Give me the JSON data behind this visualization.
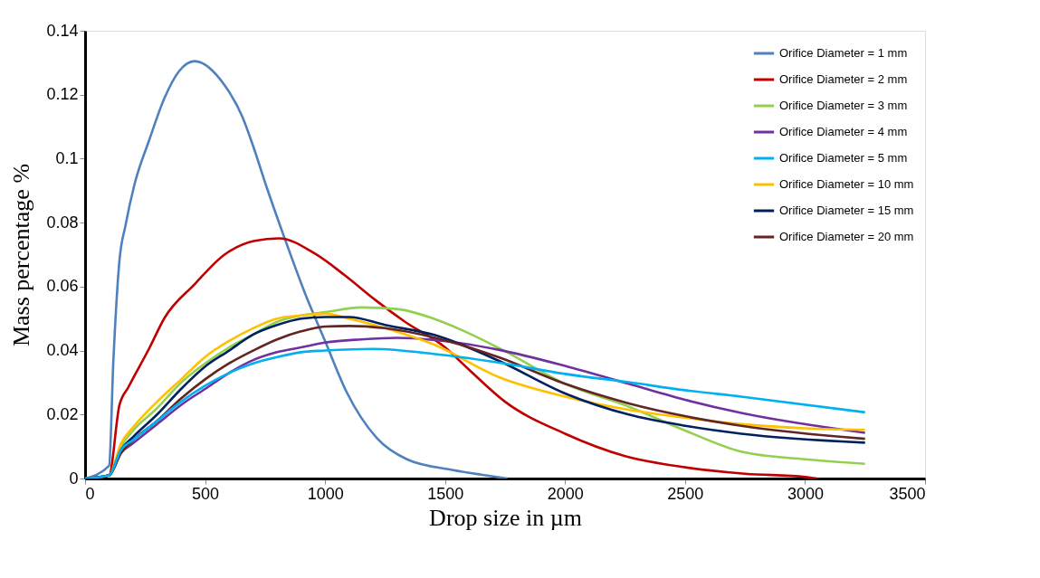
{
  "chart_data": {
    "type": "line",
    "xlabel": "Drop size in µm",
    "ylabel": "Mass percentage %",
    "xlim": [
      0,
      3500
    ],
    "ylim": [
      0,
      0.14
    ],
    "xticks": [
      0,
      500,
      1000,
      1500,
      2000,
      2500,
      3000,
      3500
    ],
    "yticks": [
      0,
      0.02,
      0.04,
      0.06,
      0.08,
      0.1,
      0.12,
      0.14
    ],
    "grid": false,
    "legend": "top right",
    "marker": "none",
    "line_style": "solid",
    "series": [
      {
        "name": "Orifice Diameter = 1 mm",
        "color": "#4f81bd",
        "x": [
          0,
          100,
          118,
          143,
          168,
          206,
          268,
          331,
          393,
          456,
          581,
          656,
          700,
          757,
          832,
          916,
          1000,
          1090,
          1216,
          1341,
          1529,
          1650,
          1760
        ],
        "values": [
          0,
          0.004,
          0.037,
          0.068,
          0.079,
          0.092,
          0.106,
          0.119,
          0.1275,
          0.1305,
          0.123,
          0.113,
          0.104,
          0.091,
          0.075,
          0.058,
          0.043,
          0.027,
          0.0126,
          0.006,
          0.0027,
          0.0012,
          0
        ]
      },
      {
        "name": "Orifice Diameter = 2 mm",
        "color": "#c00000",
        "x": [
          0,
          100,
          143,
          180,
          268,
          331,
          456,
          581,
          707,
          808,
          958,
          1083,
          1208,
          1333,
          1500,
          1600,
          1750,
          2000,
          2250,
          2500,
          2750,
          3000,
          3050
        ],
        "values": [
          0,
          0.001,
          0.0229,
          0.0285,
          0.0408,
          0.0502,
          0.0607,
          0.07,
          0.0743,
          0.0751,
          0.0703,
          0.0635,
          0.0559,
          0.049,
          0.041,
          0.034,
          0.024,
          0.014,
          0.007,
          0.0035,
          0.0015,
          0.0005,
          0
        ]
      },
      {
        "name": "Orifice Diameter = 3 mm",
        "color": "#92d050",
        "x": [
          0,
          100,
          150,
          200,
          300,
          400,
          500,
          600,
          700,
          800,
          900,
          1000,
          1150,
          1300,
          1459,
          1727,
          2000,
          2265,
          2500,
          2734,
          3000,
          3250
        ],
        "values": [
          0,
          0.001,
          0.01,
          0.015,
          0.022,
          0.03,
          0.036,
          0.041,
          0.045,
          0.049,
          0.051,
          0.052,
          0.0535,
          0.053,
          0.0498,
          0.0407,
          0.0296,
          0.0225,
          0.015,
          0.0084,
          0.006,
          0.0046
        ]
      },
      {
        "name": "Orifice Diameter = 4 mm",
        "color": "#7030a0",
        "x": [
          0,
          100,
          150,
          200,
          300,
          400,
          500,
          600,
          700,
          800,
          900,
          1000,
          1150,
          1300,
          1459,
          1727,
          2000,
          2265,
          2500,
          2734,
          3250
        ],
        "values": [
          0,
          0.001,
          0.008,
          0.011,
          0.017,
          0.023,
          0.028,
          0.033,
          0.037,
          0.0395,
          0.041,
          0.0425,
          0.0435,
          0.044,
          0.0433,
          0.0402,
          0.0352,
          0.0296,
          0.0246,
          0.0205,
          0.0143
        ]
      },
      {
        "name": "Orifice Diameter = 5 mm",
        "color": "#00b0f0",
        "x": [
          0,
          100,
          150,
          200,
          300,
          400,
          500,
          600,
          700,
          800,
          900,
          1000,
          1200,
          1459,
          1727,
          2000,
          2265,
          2500,
          2734,
          3250
        ],
        "values": [
          0,
          0.001,
          0.009,
          0.012,
          0.018,
          0.024,
          0.029,
          0.033,
          0.036,
          0.038,
          0.0395,
          0.04,
          0.0405,
          0.0389,
          0.0362,
          0.0327,
          0.0301,
          0.0276,
          0.0256,
          0.0207
        ]
      },
      {
        "name": "Orifice Diameter = 10 mm",
        "color": "#ffc000",
        "x": [
          0,
          100,
          150,
          200,
          300,
          400,
          500,
          600,
          700,
          800,
          900,
          1000,
          1100,
          1250,
          1459,
          1727,
          2000,
          2265,
          2500,
          2734,
          3000,
          3250
        ],
        "values": [
          0,
          0.001,
          0.011,
          0.016,
          0.024,
          0.031,
          0.038,
          0.043,
          0.047,
          0.05,
          0.051,
          0.0515,
          0.05,
          0.047,
          0.0417,
          0.0316,
          0.0256,
          0.0215,
          0.019,
          0.017,
          0.0157,
          0.0152
        ]
      },
      {
        "name": "Orifice Diameter = 15 mm",
        "color": "#002060",
        "x": [
          0,
          100,
          150,
          200,
          300,
          400,
          500,
          600,
          700,
          800,
          900,
          1000,
          1100,
          1250,
          1459,
          1727,
          2000,
          2265,
          2500,
          2734,
          3250
        ],
        "values": [
          0,
          0.001,
          0.009,
          0.013,
          0.02,
          0.028,
          0.035,
          0.04,
          0.045,
          0.048,
          0.05,
          0.0505,
          0.0505,
          0.048,
          0.0448,
          0.0367,
          0.0266,
          0.02,
          0.0165,
          0.014,
          0.0112
        ]
      },
      {
        "name": "Orifice Diameter = 20 mm",
        "color": "#632523",
        "x": [
          0,
          100,
          150,
          200,
          300,
          400,
          500,
          600,
          700,
          800,
          900,
          1000,
          1100,
          1250,
          1459,
          1727,
          2000,
          2265,
          2500,
          2734,
          3250
        ],
        "values": [
          0,
          0.001,
          0.008,
          0.012,
          0.018,
          0.025,
          0.031,
          0.036,
          0.04,
          0.0435,
          0.046,
          0.0475,
          0.0477,
          0.047,
          0.044,
          0.0378,
          0.0296,
          0.0235,
          0.0195,
          0.0165,
          0.0124
        ]
      }
    ]
  }
}
